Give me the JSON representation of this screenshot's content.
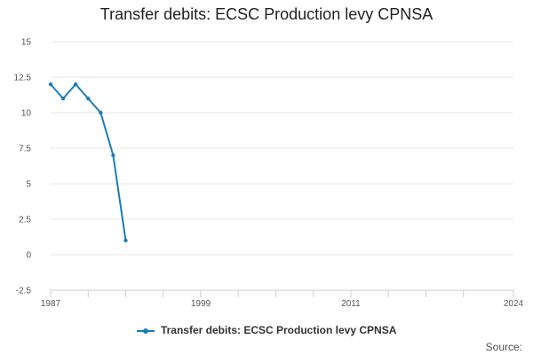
{
  "colors": {
    "series": "#1a7db6",
    "grid": "#e6e6e6",
    "axis": "#cccccc"
  },
  "source_label": "Source:",
  "chart_data": {
    "type": "line",
    "title": "Transfer debits: ECSC Production levy CPNSA",
    "xlabel": "",
    "ylabel": "",
    "xlim": [
      1987,
      2024
    ],
    "ylim": [
      -2.5,
      15
    ],
    "y_ticks": [
      -2.5,
      0,
      2.5,
      5,
      7.5,
      10,
      12.5,
      15
    ],
    "y_tick_labels": [
      "-2.5",
      "0",
      "2.5",
      "5",
      "7.5",
      "10",
      "12.5",
      "15"
    ],
    "x_tick_labels": [
      {
        "value": 1987,
        "label": "1987"
      },
      {
        "value": 1999,
        "label": "1999"
      },
      {
        "value": 2011,
        "label": "2011"
      },
      {
        "value": 2024,
        "label": "2024"
      }
    ],
    "x_minor_ticks": [
      1987,
      1990,
      1993,
      1996,
      1999,
      2002,
      2005,
      2008,
      2011,
      2014,
      2017,
      2020,
      2024
    ],
    "grid": true,
    "legend_position": "bottom",
    "series": [
      {
        "name": "Transfer debits: ECSC Production levy CPNSA",
        "x": [
          1987,
          1988,
          1989,
          1990,
          1991,
          1992,
          1993
        ],
        "y": [
          12,
          11,
          12,
          11,
          10,
          7,
          1
        ]
      }
    ]
  }
}
